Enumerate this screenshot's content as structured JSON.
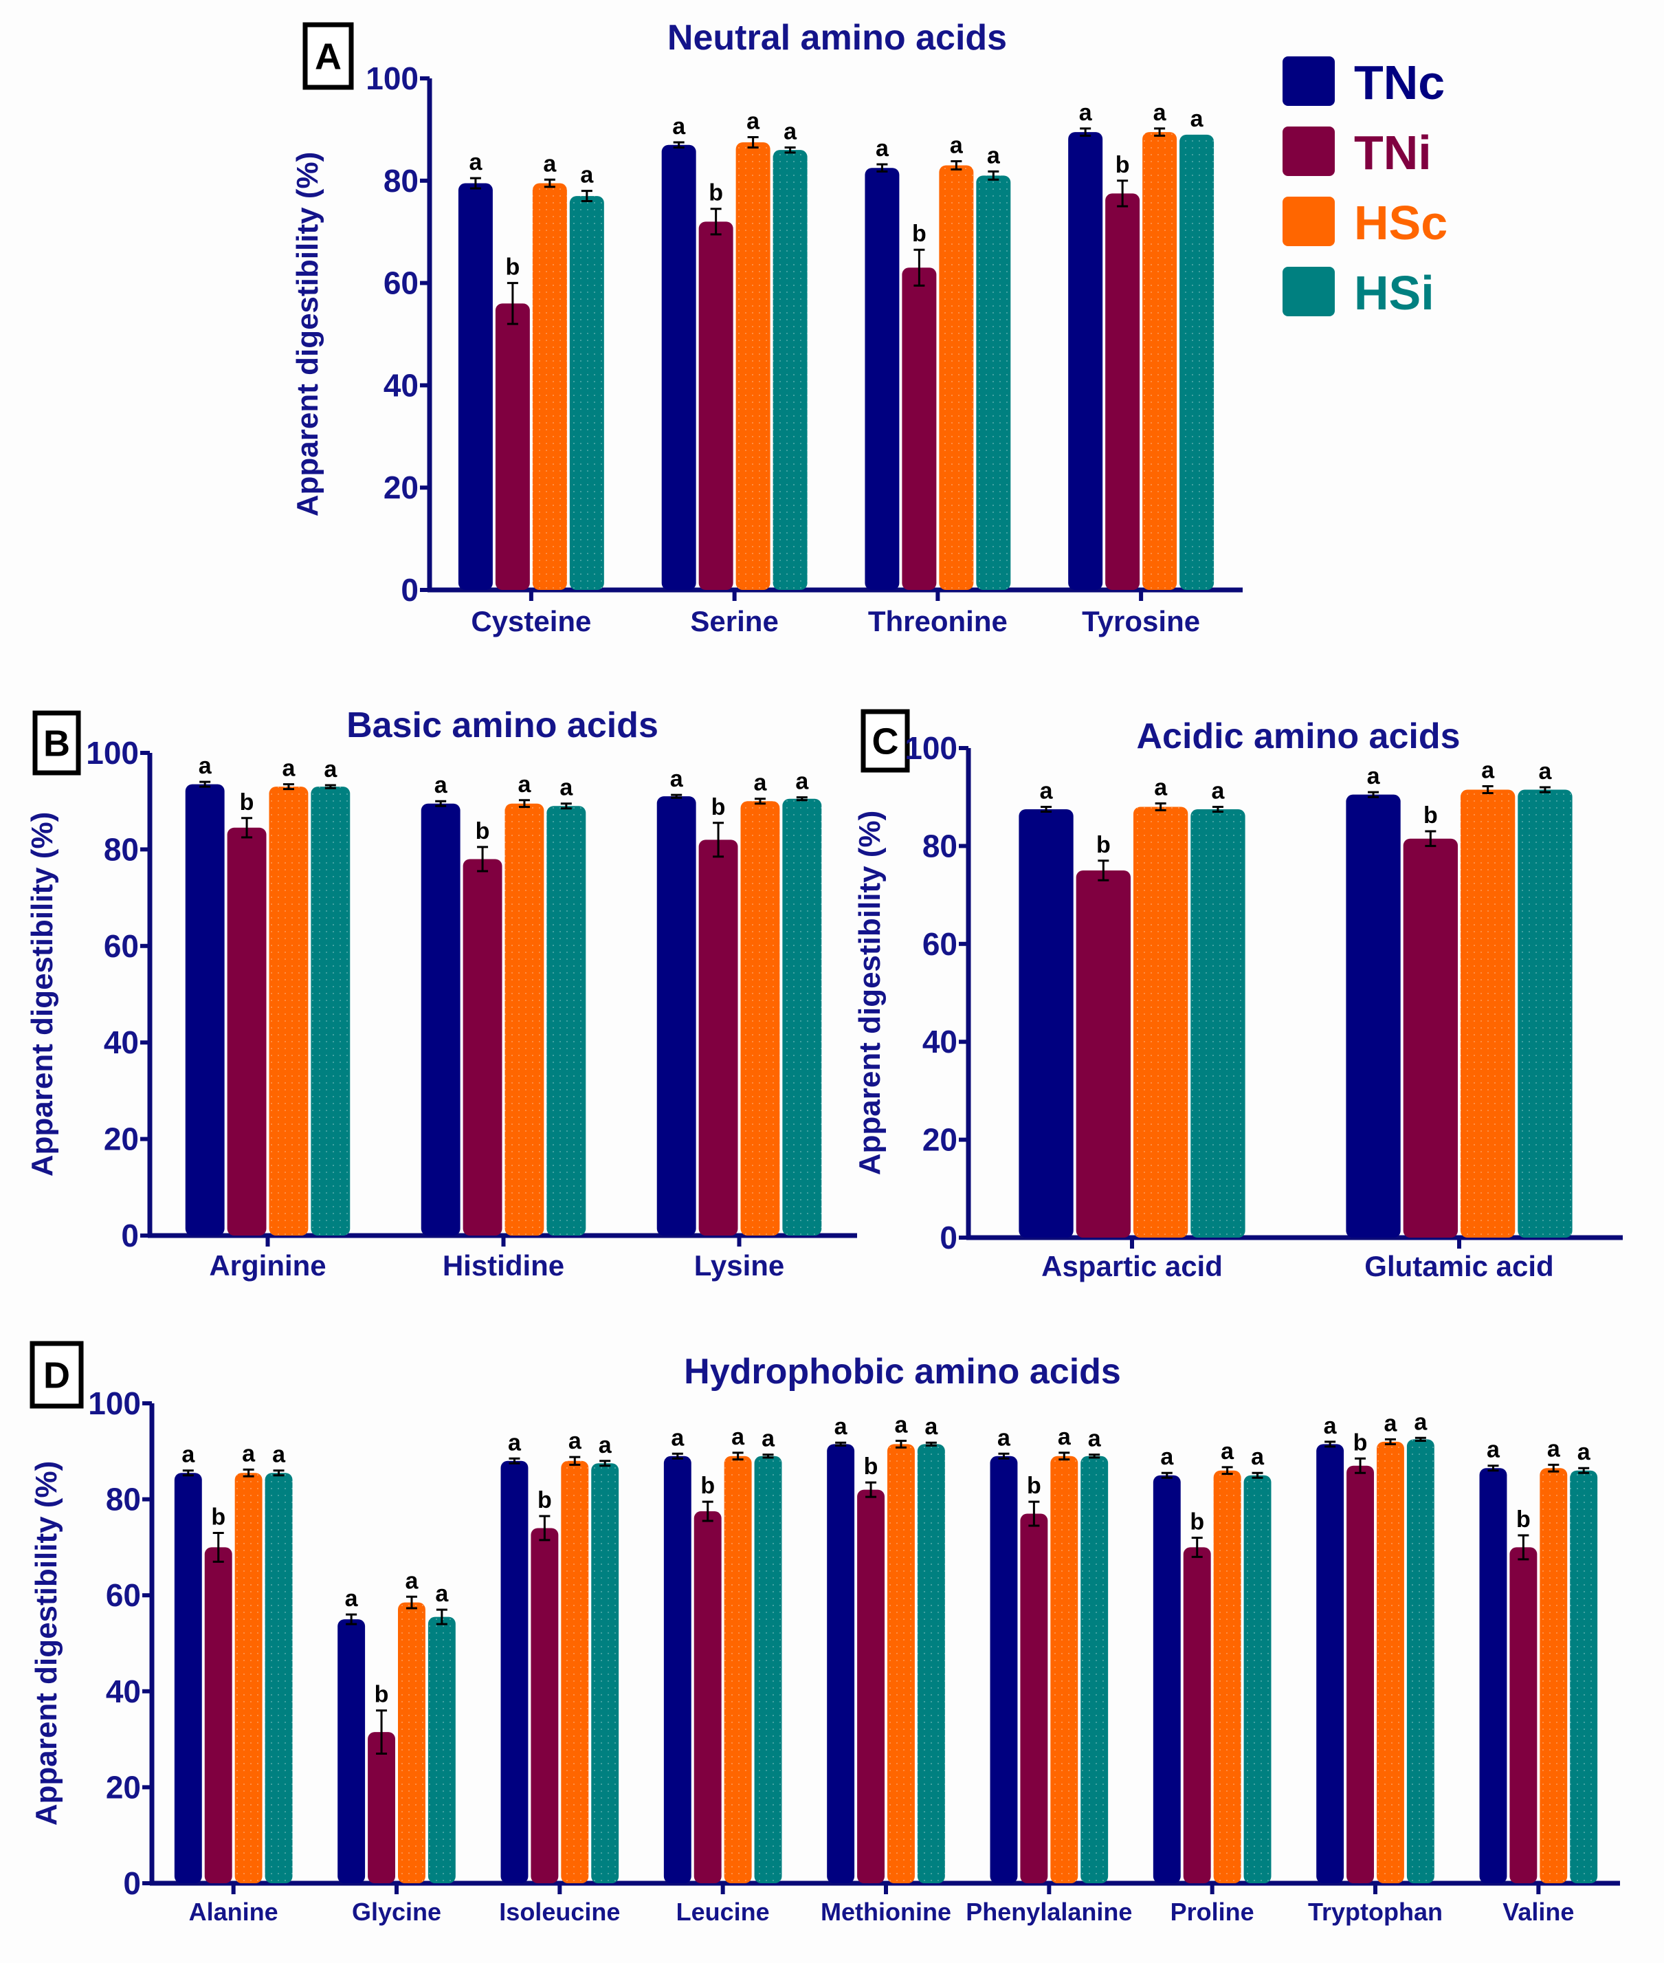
{
  "legend": [
    {
      "name": "TNc",
      "color": "#000080"
    },
    {
      "name": "TNi",
      "color": "#800040"
    },
    {
      "name": "HSc",
      "color": "#ff6600"
    },
    {
      "name": "HSi",
      "color": "#008080"
    }
  ],
  "chart_data": [
    {
      "panel": "A",
      "type": "bar",
      "title": "Neutral amino acids",
      "ylabel": "Apparent digestibility (%)",
      "ylim": [
        0,
        100
      ],
      "yticks": [
        0,
        20,
        40,
        60,
        80,
        100
      ],
      "categories": [
        "Cysteine",
        "Serine",
        "Threonine",
        "Tyrosine"
      ],
      "series": [
        {
          "name": "TNc",
          "values": [
            79.5,
            87,
            82.5,
            89.5
          ],
          "errors": [
            1,
            0.5,
            0.7,
            0.7
          ],
          "letters": [
            "a",
            "a",
            "a",
            "a"
          ]
        },
        {
          "name": "TNi",
          "values": [
            56,
            72,
            63,
            77.5
          ],
          "errors": [
            4,
            2.5,
            3.5,
            2.5
          ],
          "letters": [
            "b",
            "b",
            "b",
            "b"
          ]
        },
        {
          "name": "HSc",
          "values": [
            79.5,
            87.5,
            83,
            89.5
          ],
          "errors": [
            0.7,
            1,
            0.8,
            0.7
          ],
          "letters": [
            "a",
            "a",
            "a",
            "a"
          ]
        },
        {
          "name": "HSi",
          "values": [
            77,
            86,
            81,
            89
          ],
          "errors": [
            1,
            0.5,
            0.8,
            0
          ],
          "letters": [
            "a",
            "a",
            "a",
            "a"
          ]
        }
      ]
    },
    {
      "panel": "B",
      "type": "bar",
      "title": "Basic amino acids",
      "ylabel": "Apparent digestibility (%)",
      "ylim": [
        0,
        100
      ],
      "yticks": [
        0,
        20,
        40,
        60,
        80,
        100
      ],
      "categories": [
        "Arginine",
        "Histidine",
        "Lysine"
      ],
      "series": [
        {
          "name": "TNc",
          "values": [
            93.5,
            89.5,
            91
          ],
          "errors": [
            0.5,
            0.5,
            0.3
          ],
          "letters": [
            "a",
            "a",
            "a"
          ]
        },
        {
          "name": "TNi",
          "values": [
            84.5,
            78,
            82
          ],
          "errors": [
            2,
            2.5,
            3.5
          ],
          "letters": [
            "b",
            "b",
            "b"
          ]
        },
        {
          "name": "HSc",
          "values": [
            93,
            89.5,
            90
          ],
          "errors": [
            0.5,
            0.7,
            0.5
          ],
          "letters": [
            "a",
            "a",
            "a"
          ]
        },
        {
          "name": "HSi",
          "values": [
            93,
            89,
            90.5
          ],
          "errors": [
            0.3,
            0.5,
            0.3
          ],
          "letters": [
            "a",
            "a",
            "a"
          ]
        }
      ]
    },
    {
      "panel": "C",
      "type": "bar",
      "title": "Acidic amino acids",
      "ylabel": "Apparent digestibility (%)",
      "ylim": [
        0,
        100
      ],
      "yticks": [
        0,
        20,
        40,
        60,
        80,
        100
      ],
      "categories": [
        "Aspartic acid",
        "Glutamic acid"
      ],
      "series": [
        {
          "name": "TNc",
          "values": [
            87.5,
            90.5
          ],
          "errors": [
            0.5,
            0.5
          ],
          "letters": [
            "a",
            "a"
          ]
        },
        {
          "name": "TNi",
          "values": [
            75,
            81.5
          ],
          "errors": [
            2,
            1.5
          ],
          "letters": [
            "b",
            "b"
          ]
        },
        {
          "name": "HSc",
          "values": [
            88,
            91.5
          ],
          "errors": [
            0.7,
            0.7
          ],
          "letters": [
            "a",
            "a"
          ]
        },
        {
          "name": "HSi",
          "values": [
            87.5,
            91.5
          ],
          "errors": [
            0.5,
            0.5
          ],
          "letters": [
            "a",
            "a"
          ]
        }
      ]
    },
    {
      "panel": "D",
      "type": "bar",
      "title": "Hydrophobic amino acids",
      "ylabel": "Apparent digestibility (%)",
      "ylim": [
        0,
        100
      ],
      "yticks": [
        0,
        20,
        40,
        60,
        80,
        100
      ],
      "categories": [
        "Alanine",
        "Glycine",
        "Isoleucine",
        "Leucine",
        "Methionine",
        "Phenylalanine",
        "Proline",
        "Tryptophan",
        "Valine"
      ],
      "series": [
        {
          "name": "TNc",
          "values": [
            85.5,
            55,
            88,
            89,
            91.5,
            89,
            85,
            91.5,
            86.5
          ],
          "errors": [
            0.5,
            1,
            0.5,
            0.5,
            0.3,
            0.5,
            0.5,
            0.5,
            0.5
          ],
          "letters": [
            "a",
            "a",
            "a",
            "a",
            "a",
            "a",
            "a",
            "a",
            "a"
          ]
        },
        {
          "name": "TNi",
          "values": [
            70,
            31.5,
            74,
            77.5,
            82,
            77,
            70,
            87,
            70
          ],
          "errors": [
            3,
            4.5,
            2.5,
            2,
            1.5,
            2.5,
            2,
            1.5,
            2.5
          ],
          "letters": [
            "b",
            "b",
            "b",
            "b",
            "b",
            "b",
            "b",
            "b",
            "b"
          ]
        },
        {
          "name": "HSc",
          "values": [
            85.5,
            58.5,
            88,
            89,
            91.5,
            89,
            86,
            92,
            86.5
          ],
          "errors": [
            0.7,
            1.2,
            0.8,
            0.7,
            0.7,
            0.7,
            0.7,
            0.5,
            0.7
          ],
          "letters": [
            "a",
            "a",
            "a",
            "a",
            "a",
            "a",
            "a",
            "a",
            "a"
          ]
        },
        {
          "name": "HSi",
          "values": [
            85.5,
            55.5,
            87.5,
            89,
            91.5,
            89,
            85,
            92.5,
            86
          ],
          "errors": [
            0.5,
            1.5,
            0.5,
            0.3,
            0.3,
            0.3,
            0.5,
            0.3,
            0.5
          ],
          "letters": [
            "a",
            "a",
            "a",
            "a",
            "a",
            "a",
            "a",
            "a",
            "a"
          ]
        }
      ]
    }
  ]
}
